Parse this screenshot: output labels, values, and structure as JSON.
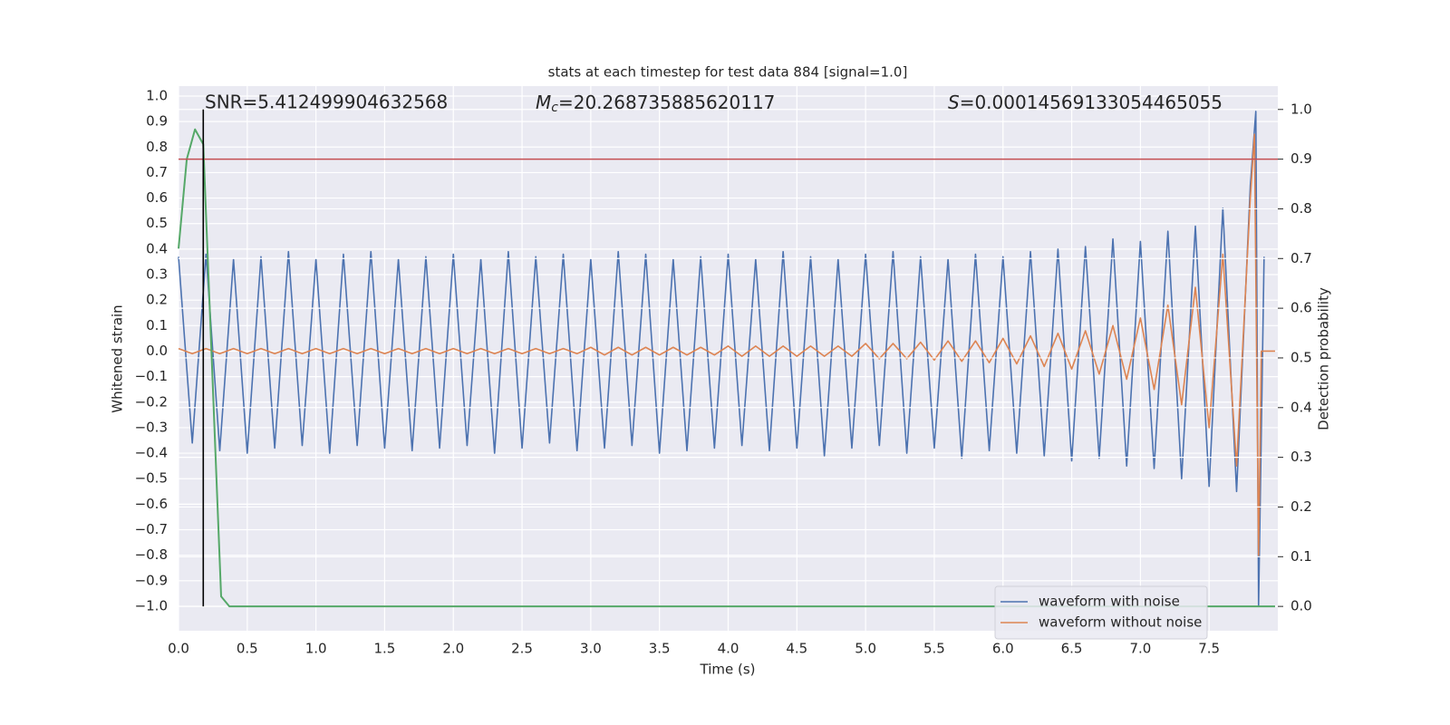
{
  "chart_data": {
    "type": "line",
    "title": "stats at each timestep for test data 884 [signal=1.0]",
    "x_label": "Time (s)",
    "y_label": "Whitened strain",
    "y2_label": "Detection probability",
    "xlim": [
      0,
      8.0
    ],
    "ylim": [
      -1.096,
      1.039
    ],
    "y2lim": [
      -0.049,
      1.047
    ],
    "grid": true,
    "legend": "lower right",
    "xticks": [
      {
        "value": 0,
        "label": "0.0"
      },
      {
        "value": 0.5,
        "label": "0.5"
      },
      {
        "value": 1,
        "label": "1.0"
      },
      {
        "value": 1.5,
        "label": "1.5"
      },
      {
        "value": 2,
        "label": "2.0"
      },
      {
        "value": 2.5,
        "label": "2.5"
      },
      {
        "value": 3,
        "label": "3.0"
      },
      {
        "value": 3.5,
        "label": "3.5"
      },
      {
        "value": 4,
        "label": "4.0"
      },
      {
        "value": 4.5,
        "label": "4.5"
      },
      {
        "value": 5,
        "label": "5.0"
      },
      {
        "value": 5.5,
        "label": "5.5"
      },
      {
        "value": 6,
        "label": "6.0"
      },
      {
        "value": 6.5,
        "label": "6.5"
      },
      {
        "value": 7,
        "label": "7.0"
      },
      {
        "value": 7.5,
        "label": "7.5"
      }
    ],
    "yticks": [
      {
        "value": -1,
        "label": "−1.0"
      },
      {
        "value": -0.9,
        "label": "−0.9"
      },
      {
        "value": -0.8,
        "label": "−0.8"
      },
      {
        "value": -0.7,
        "label": "−0.7"
      },
      {
        "value": -0.6,
        "label": "−0.6"
      },
      {
        "value": -0.5,
        "label": "−0.5"
      },
      {
        "value": -0.4,
        "label": "−0.4"
      },
      {
        "value": -0.3,
        "label": "−0.3"
      },
      {
        "value": -0.2,
        "label": "−0.2"
      },
      {
        "value": -0.1,
        "label": "−0.1"
      },
      {
        "value": 0,
        "label": "0.0"
      },
      {
        "value": 0.1,
        "label": "0.1"
      },
      {
        "value": 0.2,
        "label": "0.2"
      },
      {
        "value": 0.3,
        "label": "0.3"
      },
      {
        "value": 0.4,
        "label": "0.4"
      },
      {
        "value": 0.5,
        "label": "0.5"
      },
      {
        "value": 0.6,
        "label": "0.6"
      },
      {
        "value": 0.7,
        "label": "0.7"
      },
      {
        "value": 0.8,
        "label": "0.8"
      },
      {
        "value": 0.9,
        "label": "0.9"
      },
      {
        "value": 1,
        "label": "1.0"
      }
    ],
    "y2ticks": [
      {
        "value": 0,
        "label": "0.0"
      },
      {
        "value": 0.1,
        "label": "0.1"
      },
      {
        "value": 0.2,
        "label": "0.2"
      },
      {
        "value": 0.3,
        "label": "0.3"
      },
      {
        "value": 0.4,
        "label": "0.4"
      },
      {
        "value": 0.5,
        "label": "0.5"
      },
      {
        "value": 0.6,
        "label": "0.6"
      },
      {
        "value": 0.7,
        "label": "0.7"
      },
      {
        "value": 0.8,
        "label": "0.8"
      },
      {
        "value": 0.9,
        "label": "0.9"
      },
      {
        "value": 1,
        "label": "1.0"
      }
    ],
    "annotations": [
      {
        "text": "SNR=5.412499904632568"
      },
      {
        "symbol": "M",
        "subscript": "c",
        "text": "=20.268735885620117"
      },
      {
        "symbol": "S",
        "text": "=0.00014569133054465055"
      }
    ],
    "detection_time": 0.18,
    "threshold": 0.9,
    "threshold_color": "#c44e52",
    "marker_color": "#000000",
    "series": [
      {
        "name": "waveform with noise",
        "color": "#4c72b0",
        "x": [
          0.0,
          0.1,
          0.2,
          0.3,
          0.4,
          0.5,
          0.6,
          0.7,
          0.8,
          0.9,
          1.0,
          1.1,
          1.2,
          1.3,
          1.4,
          1.5,
          1.6,
          1.7,
          1.8,
          1.9,
          2.0,
          2.1,
          2.2,
          2.3,
          2.4,
          2.5,
          2.6,
          2.7,
          2.8,
          2.9,
          3.0,
          3.1,
          3.2,
          3.3,
          3.4,
          3.5,
          3.6,
          3.7,
          3.8,
          3.9,
          4.0,
          4.1,
          4.2,
          4.3,
          4.4,
          4.5,
          4.6,
          4.7,
          4.8,
          4.9,
          5.0,
          5.1,
          5.2,
          5.3,
          5.4,
          5.5,
          5.6,
          5.7,
          5.8,
          5.9,
          6.0,
          6.1,
          6.2,
          6.3,
          6.4,
          6.5,
          6.6,
          6.7,
          6.8,
          6.9,
          7.0,
          7.1,
          7.2,
          7.3,
          7.4,
          7.5,
          7.6,
          7.7,
          7.8,
          7.84,
          7.86,
          7.9
        ],
        "values": [
          0.37,
          -0.36,
          0.38,
          -0.39,
          0.36,
          -0.4,
          0.37,
          -0.38,
          0.39,
          -0.37,
          0.36,
          -0.4,
          0.38,
          -0.37,
          0.39,
          -0.38,
          0.36,
          -0.39,
          0.37,
          -0.38,
          0.38,
          -0.37,
          0.36,
          -0.4,
          0.39,
          -0.38,
          0.37,
          -0.36,
          0.38,
          -0.39,
          0.36,
          -0.38,
          0.39,
          -0.37,
          0.38,
          -0.4,
          0.36,
          -0.39,
          0.37,
          -0.38,
          0.38,
          -0.37,
          0.36,
          -0.39,
          0.39,
          -0.38,
          0.37,
          -0.41,
          0.36,
          -0.38,
          0.38,
          -0.37,
          0.39,
          -0.4,
          0.37,
          -0.38,
          0.36,
          -0.42,
          0.38,
          -0.39,
          0.37,
          -0.4,
          0.39,
          -0.41,
          0.4,
          -0.43,
          0.41,
          -0.42,
          0.44,
          -0.45,
          0.43,
          -0.46,
          0.47,
          -0.5,
          0.49,
          -0.53,
          0.56,
          -0.55,
          0.65,
          0.94,
          -1.0,
          0.37
        ]
      },
      {
        "name": "waveform without noise",
        "color": "#dd8452",
        "x": [
          0.0,
          0.1,
          0.2,
          0.3,
          0.4,
          0.5,
          0.6,
          0.7,
          0.8,
          0.9,
          1.0,
          1.1,
          1.2,
          1.3,
          1.4,
          1.5,
          1.6,
          1.7,
          1.8,
          1.9,
          2.0,
          2.1,
          2.2,
          2.3,
          2.4,
          2.5,
          2.6,
          2.7,
          2.8,
          2.9,
          3.0,
          3.1,
          3.2,
          3.3,
          3.4,
          3.5,
          3.6,
          3.7,
          3.8,
          3.9,
          4.0,
          4.1,
          4.2,
          4.3,
          4.4,
          4.5,
          4.6,
          4.7,
          4.8,
          4.9,
          5.0,
          5.1,
          5.2,
          5.3,
          5.4,
          5.5,
          5.6,
          5.7,
          5.8,
          5.9,
          6.0,
          6.1,
          6.2,
          6.3,
          6.4,
          6.5,
          6.6,
          6.7,
          6.8,
          6.9,
          7.0,
          7.1,
          7.2,
          7.3,
          7.4,
          7.5,
          7.6,
          7.7,
          7.8,
          7.83,
          7.86,
          7.88,
          7.98
        ],
        "values": [
          0.01,
          -0.01,
          0.01,
          -0.01,
          0.01,
          -0.01,
          0.01,
          -0.01,
          0.01,
          -0.01,
          0.01,
          -0.01,
          0.01,
          -0.01,
          0.01,
          -0.01,
          0.01,
          -0.01,
          0.01,
          -0.01,
          0.01,
          -0.01,
          0.01,
          -0.01,
          0.01,
          -0.01,
          0.01,
          -0.01,
          0.01,
          -0.01,
          0.015,
          -0.015,
          0.015,
          -0.015,
          0.015,
          -0.015,
          0.015,
          -0.015,
          0.015,
          -0.015,
          0.02,
          -0.02,
          0.02,
          -0.02,
          0.02,
          -0.02,
          0.02,
          -0.02,
          0.02,
          -0.02,
          0.03,
          -0.03,
          0.03,
          -0.03,
          0.035,
          -0.035,
          0.04,
          -0.04,
          0.04,
          -0.045,
          0.05,
          -0.05,
          0.06,
          -0.06,
          0.07,
          -0.07,
          0.08,
          -0.09,
          0.1,
          -0.11,
          0.13,
          -0.15,
          0.18,
          -0.21,
          0.25,
          -0.3,
          0.38,
          -0.45,
          0.6,
          0.85,
          -0.8,
          0.0,
          0.0
        ]
      },
      {
        "name": "detection probability",
        "color": "#55a868",
        "axis": "y2",
        "legend": false,
        "x": [
          0.0,
          0.06,
          0.12,
          0.18,
          0.31,
          0.37,
          7.98
        ],
        "values": [
          0.72,
          0.9,
          0.96,
          0.93,
          0.02,
          0.0,
          0.0
        ]
      }
    ]
  }
}
